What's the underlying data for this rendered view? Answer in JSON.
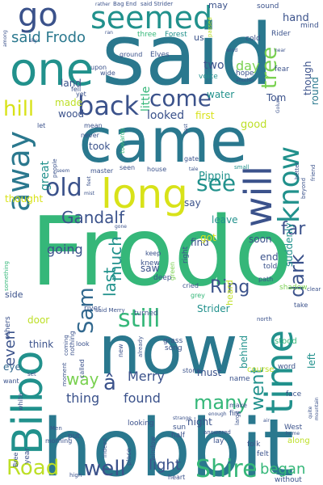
{
  "palette": {
    "background": "#ffffff",
    "purple": "#440154",
    "indigo": "#3b528b",
    "blue": "#31688e",
    "teal": "#21918c",
    "sea": "#2a788e",
    "green": "#35b779",
    "lime": "#7ad151",
    "yellow": "#bddf26",
    "gold": "#d8e219"
  },
  "words": [
    {
      "text": "Frodo",
      "color": "green"
    },
    {
      "text": "said",
      "color": "sea"
    },
    {
      "text": "came",
      "color": "sea"
    },
    {
      "text": "hobbit",
      "color": "sea"
    },
    {
      "text": "now",
      "color": "sea"
    },
    {
      "text": "one",
      "color": "teal"
    },
    {
      "text": "long",
      "color": "gold"
    },
    {
      "text": "Bilbo",
      "color": "teal"
    },
    {
      "text": "will",
      "color": "indigo"
    },
    {
      "text": "time",
      "color": "teal"
    },
    {
      "text": "seemed",
      "color": "teal"
    },
    {
      "text": "away",
      "color": "sea"
    },
    {
      "text": "know",
      "color": "teal"
    },
    {
      "text": "go",
      "color": "indigo"
    },
    {
      "text": "back",
      "color": "indigo"
    },
    {
      "text": "come",
      "color": "indigo"
    },
    {
      "text": "old",
      "color": "indigo"
    },
    {
      "text": "see",
      "color": "teal"
    },
    {
      "text": "Sam",
      "color": "blue"
    },
    {
      "text": "still",
      "color": "green"
    },
    {
      "text": "Shire",
      "color": "green"
    },
    {
      "text": "Road",
      "color": "yellow"
    },
    {
      "text": "well",
      "color": "indigo"
    },
    {
      "text": "many",
      "color": "green"
    },
    {
      "text": "went",
      "color": "teal"
    },
    {
      "text": "dark",
      "color": "indigo"
    },
    {
      "text": "tree",
      "color": "lime"
    },
    {
      "text": "hill",
      "color": "gold"
    },
    {
      "text": "far",
      "color": "indigo"
    },
    {
      "text": "Ring",
      "color": "indigo"
    },
    {
      "text": "Gandalf",
      "color": "indigo"
    },
    {
      "text": "last",
      "color": "teal"
    },
    {
      "text": "much",
      "color": "teal"
    },
    {
      "text": "even",
      "color": "indigo"
    },
    {
      "text": "way",
      "color": "lime"
    },
    {
      "text": "light",
      "color": "indigo"
    },
    {
      "text": "began",
      "color": "green"
    },
    {
      "text": "said Frodo",
      "color": "sea"
    },
    {
      "text": "going",
      "color": "indigo"
    },
    {
      "text": "thing",
      "color": "indigo"
    },
    {
      "text": "found",
      "color": "indigo"
    },
    {
      "text": "Merry",
      "color": "indigo"
    },
    {
      "text": "â",
      "color": "indigo"
    },
    {
      "text": "hand",
      "color": "indigo"
    },
    {
      "text": "day",
      "color": "lime"
    },
    {
      "text": "little",
      "color": "green"
    },
    {
      "text": "looked",
      "color": "indigo"
    },
    {
      "text": "two",
      "color": "indigo"
    },
    {
      "text": "round",
      "color": "sea"
    },
    {
      "text": "though",
      "color": "indigo"
    },
    {
      "text": "land",
      "color": "indigo"
    },
    {
      "text": "made",
      "color": "yellow"
    },
    {
      "text": "wood",
      "color": "indigo"
    },
    {
      "text": "great",
      "color": "teal"
    },
    {
      "text": "took",
      "color": "indigo"
    },
    {
      "text": "thought",
      "color": "gold"
    },
    {
      "text": "Pippin",
      "color": "teal"
    },
    {
      "text": "good",
      "color": "yellow"
    },
    {
      "text": "water",
      "color": "teal"
    },
    {
      "text": "Tom",
      "color": "indigo"
    },
    {
      "text": "first",
      "color": "gold"
    },
    {
      "text": "say",
      "color": "indigo"
    },
    {
      "text": "leave",
      "color": "teal"
    },
    {
      "text": "soon",
      "color": "indigo"
    },
    {
      "text": "find",
      "color": "indigo"
    },
    {
      "text": "got",
      "color": "gold"
    },
    {
      "text": "saw",
      "color": "indigo"
    },
    {
      "text": "end",
      "color": "indigo"
    },
    {
      "text": "side",
      "color": "indigo"
    },
    {
      "text": "door",
      "color": "yellow"
    },
    {
      "text": "think",
      "color": "indigo"
    },
    {
      "text": "eye",
      "color": "blue"
    },
    {
      "text": "must",
      "color": "indigo"
    },
    {
      "text": "behind",
      "color": "teal"
    },
    {
      "text": "left",
      "color": "teal"
    },
    {
      "text": "suddenly",
      "color": "teal"
    },
    {
      "text": "night",
      "color": "indigo"
    },
    {
      "text": "Strider",
      "color": "teal"
    },
    {
      "text": "heard",
      "color": "yellow"
    },
    {
      "text": "may",
      "color": "indigo"
    },
    {
      "text": "us",
      "color": "indigo"
    },
    {
      "text": "mind",
      "color": "indigo"
    },
    {
      "text": "sound",
      "color": "indigo"
    },
    {
      "text": "cold",
      "color": "indigo"
    },
    {
      "text": "Rider",
      "color": "indigo"
    },
    {
      "text": "fear",
      "color": "indigo"
    },
    {
      "text": "hope",
      "color": "indigo"
    },
    {
      "text": "voice",
      "color": "teal"
    },
    {
      "text": "three",
      "color": "green"
    },
    {
      "text": "Forest",
      "color": "teal"
    },
    {
      "text": "Elves",
      "color": "indigo"
    },
    {
      "text": "ground",
      "color": "indigo"
    },
    {
      "text": "wide",
      "color": "indigo"
    },
    {
      "text": "upon",
      "color": "indigo"
    },
    {
      "text": "fell",
      "color": "indigo"
    },
    {
      "text": "yet",
      "color": "indigo"
    },
    {
      "text": "mean",
      "color": "indigo"
    },
    {
      "text": "let",
      "color": "indigo"
    },
    {
      "text": "never",
      "color": "indigo"
    },
    {
      "text": "towards",
      "color": "green"
    },
    {
      "text": "seen",
      "color": "indigo"
    },
    {
      "text": "house",
      "color": "indigo"
    },
    {
      "text": "master",
      "color": "indigo"
    },
    {
      "text": "told",
      "color": "indigo"
    },
    {
      "text": "shadow",
      "color": "lime"
    },
    {
      "text": "gate",
      "color": "indigo"
    },
    {
      "text": "small",
      "color": "teal"
    },
    {
      "text": "keep",
      "color": "indigo"
    },
    {
      "text": "knew",
      "color": "indigo"
    },
    {
      "text": "right",
      "color": "indigo"
    },
    {
      "text": "cried",
      "color": "indigo"
    },
    {
      "text": "green",
      "color": "lime"
    },
    {
      "text": "deep",
      "color": "indigo"
    },
    {
      "text": "river",
      "color": "indigo"
    },
    {
      "text": "turned",
      "color": "indigo"
    },
    {
      "text": "said Merry",
      "color": "indigo"
    },
    {
      "text": "grey",
      "color": "green"
    },
    {
      "text": "path",
      "color": "indigo"
    },
    {
      "text": "clear",
      "color": "indigo"
    },
    {
      "text": "take",
      "color": "indigo"
    },
    {
      "text": "north",
      "color": "indigo"
    },
    {
      "text": "stood",
      "color": "green"
    },
    {
      "text": "grass",
      "color": "indigo"
    },
    {
      "text": "song",
      "color": "indigo"
    },
    {
      "text": "stone",
      "color": "indigo"
    },
    {
      "text": "course",
      "color": "yellow"
    },
    {
      "text": "word",
      "color": "indigo"
    },
    {
      "text": "face",
      "color": "indigo"
    },
    {
      "text": "name",
      "color": "indigo"
    },
    {
      "text": "make",
      "color": "indigo"
    },
    {
      "text": "fire",
      "color": "indigo"
    },
    {
      "text": "sun",
      "color": "indigo"
    },
    {
      "text": "half",
      "color": "indigo"
    },
    {
      "text": "lay",
      "color": "indigo"
    },
    {
      "text": "folk",
      "color": "indigo"
    },
    {
      "text": "felt",
      "color": "indigo"
    },
    {
      "text": "West",
      "color": "indigo"
    },
    {
      "text": "along",
      "color": "yellow"
    },
    {
      "text": "without",
      "color": "indigo"
    },
    {
      "text": "heart",
      "color": "indigo"
    },
    {
      "text": "high",
      "color": "indigo"
    },
    {
      "text": "Bree",
      "color": "indigo"
    },
    {
      "text": "year",
      "color": "indigo"
    },
    {
      "text": "put",
      "color": "indigo"
    },
    {
      "text": "morning",
      "color": "indigo"
    },
    {
      "text": "Men",
      "color": "indigo"
    },
    {
      "text": "white",
      "color": "indigo"
    },
    {
      "text": "want",
      "color": "indigo"
    },
    {
      "text": "set",
      "color": "indigo"
    },
    {
      "text": "looking",
      "color": "indigo"
    },
    {
      "text": "window",
      "color": "indigo"
    },
    {
      "text": "place",
      "color": "indigo"
    },
    {
      "text": "indeed",
      "color": "indigo"
    },
    {
      "text": "answered",
      "color": "indigo"
    },
    {
      "text": "nothing",
      "color": "indigo"
    },
    {
      "text": "coming",
      "color": "indigo"
    },
    {
      "text": "moment",
      "color": "indigo"
    },
    {
      "text": "called",
      "color": "indigo"
    },
    {
      "text": "look",
      "color": "indigo"
    },
    {
      "text": "new",
      "color": "indigo"
    },
    {
      "text": "already",
      "color": "indigo"
    },
    {
      "text": "others",
      "color": "indigo"
    },
    {
      "text": "something",
      "color": "green"
    },
    {
      "text": "people",
      "color": "indigo"
    },
    {
      "text": "seem",
      "color": "indigo"
    },
    {
      "text": "mist",
      "color": "indigo"
    },
    {
      "text": "feet",
      "color": "indigo"
    },
    {
      "text": "friend",
      "color": "indigo"
    },
    {
      "text": "beyond",
      "color": "indigo"
    },
    {
      "text": "better",
      "color": "indigo"
    },
    {
      "text": "another",
      "color": "indigo"
    },
    {
      "text": "near",
      "color": "indigo"
    },
    {
      "text": "Bag End",
      "color": "indigo"
    },
    {
      "text": "said Strider",
      "color": "indigo"
    },
    {
      "text": "passed",
      "color": "yellow"
    },
    {
      "text": "among",
      "color": "indigo"
    },
    {
      "text": "sky",
      "color": "indigo"
    },
    {
      "text": "ran",
      "color": "indigo"
    },
    {
      "text": "rather",
      "color": "indigo"
    },
    {
      "text": "wind",
      "color": "indigo"
    },
    {
      "text": "enough",
      "color": "indigo"
    },
    {
      "text": "mountain",
      "color": "indigo"
    },
    {
      "text": "quite",
      "color": "indigo"
    },
    {
      "text": "home",
      "color": "indigo"
    },
    {
      "text": "large",
      "color": "indigo"
    },
    {
      "text": "strange",
      "color": "indigo"
    },
    {
      "text": "east",
      "color": "indigo"
    },
    {
      "text": "tale",
      "color": "indigo"
    },
    {
      "text": "gone",
      "color": "indigo"
    },
    {
      "text": "air",
      "color": "indigo"
    },
    {
      "text": "Golum",
      "color": "indigo"
    }
  ]
}
